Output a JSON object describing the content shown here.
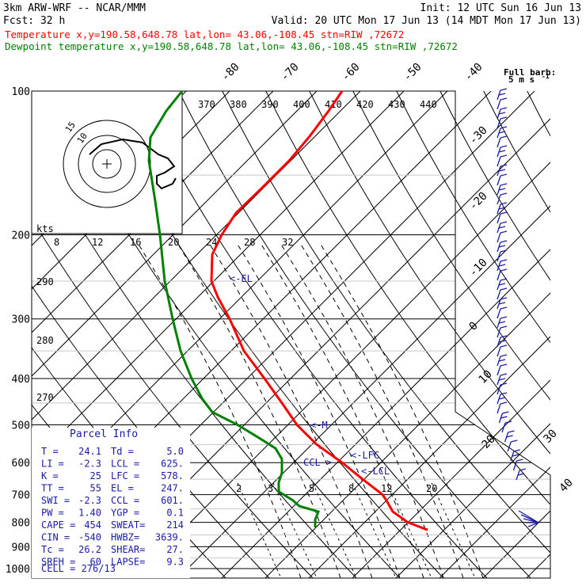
{
  "header": {
    "line1_left": "3km ARW-WRF -- NCAR/MMM",
    "line1_right": "Init: 12 UTC Sun 16 Jun 13",
    "line2_left": "Fcst:    32 h",
    "line2_right": "Valid: 20 UTC Mon 17 Jun 13 (14 MDT Mon 17 Jun 13)",
    "temp_line": "Temperature              x,y=190.58,648.78    lat,lon= 43.06,-108.45   stn=RIW ,72672",
    "dew_line": "Dewpoint temperature     x,y=190.58,648.78    lat,lon= 43.06,-108.45   stn=RIW ,72672"
  },
  "colors": {
    "temperature": "#ff0000",
    "dewpoint": "#008000",
    "parcel_info": "#1a1aa8",
    "hodograph": "#000000"
  },
  "pressure_labels": [
    "100",
    "200",
    "300",
    "400",
    "500",
    "600",
    "700",
    "800",
    "900",
    "1000"
  ],
  "temp_top_labels": [
    "-80",
    "-70",
    "-60",
    "-50",
    "-40"
  ],
  "temp_right_labels": [
    "-30",
    "-20",
    "-10",
    "0",
    "10",
    "20",
    "30",
    "40"
  ],
  "theta_e_labels": [
    "370",
    "380",
    "390",
    "400",
    "410",
    "420",
    "430",
    "440"
  ],
  "theta_labels": [
    "290",
    "280",
    "270"
  ],
  "kts_label": "kts",
  "hodo_speed_labels": [
    "8",
    "12",
    "16",
    "20",
    "24",
    "28",
    "32"
  ],
  "hodo_ring_labels": [
    "15",
    "10"
  ],
  "mixing_ratio_labels": [
    "2",
    "3",
    "5",
    "8",
    "12",
    "20"
  ],
  "full_barb_label": "Full barb:",
  "full_barb_unit": "5 m s",
  "full_barb_exp": "-1",
  "level_markers": {
    "el": "<-EL",
    "m": "<-M",
    "lfc": "<-LFC",
    "ccl": "CCL->",
    "lcl": "<-LCL"
  },
  "parcel_info": {
    "title": "Parcel Info",
    "rows": [
      [
        "T  =",
        "24.1",
        "Td =",
        "5.0"
      ],
      [
        "LI =",
        "-2.3",
        "LCL =",
        "625."
      ],
      [
        "K  =",
        "25",
        "LFC =",
        "578."
      ],
      [
        "TT =",
        "55",
        "EL =",
        "247."
      ],
      [
        "SWI =",
        "-2.3",
        "CCL =",
        "601."
      ],
      [
        "PW =",
        "1.40",
        "YGP =",
        "0.1"
      ],
      [
        "CAPE =",
        "454",
        "SWEAT=",
        "214"
      ],
      [
        "CIN =",
        "-540",
        "HWBZ=",
        "3639."
      ],
      [
        "Tc =",
        "26.2",
        "SHEAR=",
        "27."
      ],
      [
        "SREH =",
        "60",
        "LAPSE=",
        "9.3"
      ]
    ],
    "cell": "CELL = 276/13"
  },
  "chart_data": {
    "type": "line",
    "title": "3km ARW-WRF -- NCAR/MMM",
    "xlabel": "",
    "ylabel": "",
    "y_scale": "log-pressure",
    "ylim": [
      1000,
      100
    ],
    "series": [
      {
        "name": "Temperature",
        "points": [
          {
            "p": 830,
            "x": 540
          },
          {
            "p": 800,
            "x": 515
          },
          {
            "p": 760,
            "x": 496
          },
          {
            "p": 720,
            "x": 488
          },
          {
            "p": 700,
            "x": 483
          },
          {
            "p": 650,
            "x": 458
          },
          {
            "p": 600,
            "x": 432
          },
          {
            "p": 550,
            "x": 400
          },
          {
            "p": 500,
            "x": 375
          },
          {
            "p": 450,
            "x": 356
          },
          {
            "p": 400,
            "x": 334
          },
          {
            "p": 350,
            "x": 308
          },
          {
            "p": 300,
            "x": 290
          },
          {
            "p": 270,
            "x": 275
          },
          {
            "p": 250,
            "x": 267
          },
          {
            "p": 220,
            "x": 268
          },
          {
            "p": 200,
            "x": 280
          },
          {
            "p": 180,
            "x": 298
          },
          {
            "p": 160,
            "x": 330
          },
          {
            "p": 140,
            "x": 365
          },
          {
            "p": 125,
            "x": 390
          },
          {
            "p": 110,
            "x": 415
          },
          {
            "p": 100,
            "x": 432
          }
        ]
      },
      {
        "name": "Dewpoint temperature",
        "points": [
          {
            "p": 820,
            "x": 398
          },
          {
            "p": 790,
            "x": 398
          },
          {
            "p": 760,
            "x": 402
          },
          {
            "p": 740,
            "x": 378
          },
          {
            "p": 720,
            "x": 370
          },
          {
            "p": 690,
            "x": 352
          },
          {
            "p": 660,
            "x": 352
          },
          {
            "p": 630,
            "x": 356
          },
          {
            "p": 590,
            "x": 356
          },
          {
            "p": 560,
            "x": 348
          },
          {
            "p": 530,
            "x": 325
          },
          {
            "p": 500,
            "x": 300
          },
          {
            "p": 470,
            "x": 268
          },
          {
            "p": 440,
            "x": 255
          },
          {
            "p": 400,
            "x": 242
          },
          {
            "p": 350,
            "x": 228
          },
          {
            "p": 300,
            "x": 218
          },
          {
            "p": 250,
            "x": 208
          },
          {
            "p": 200,
            "x": 202
          },
          {
            "p": 170,
            "x": 196
          },
          {
            "p": 140,
            "x": 188
          },
          {
            "p": 125,
            "x": 190
          },
          {
            "p": 110,
            "x": 210
          },
          {
            "p": 100,
            "x": 230
          }
        ]
      }
    ]
  }
}
